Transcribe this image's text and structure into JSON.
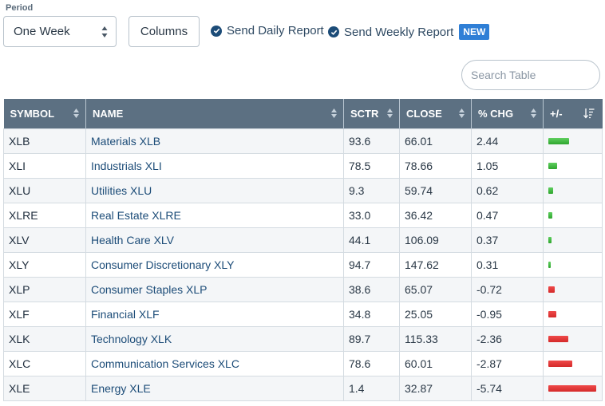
{
  "controls": {
    "period_label": "Period",
    "period_value": "One Week",
    "columns_label": "Columns",
    "daily_report_label": "Send Daily Report",
    "weekly_report_label": "Send Weekly Report",
    "new_badge": "NEW",
    "search_placeholder": "Search Table"
  },
  "colors": {
    "positive": "#2ea52e",
    "negative": "#d42a2a",
    "header": "#5c7082",
    "link": "#1c4c78"
  },
  "table": {
    "headers": [
      "SYMBOL",
      "NAME",
      "SCTR",
      "CLOSE",
      "% CHG",
      "+/-"
    ],
    "rows": [
      {
        "symbol": "XLB",
        "name": "Materials XLB",
        "sctr": "93.6",
        "close": "66.01",
        "chg": "2.44"
      },
      {
        "symbol": "XLI",
        "name": "Industrials XLI",
        "sctr": "78.5",
        "close": "78.66",
        "chg": "1.05"
      },
      {
        "symbol": "XLU",
        "name": "Utilities XLU",
        "sctr": "9.3",
        "close": "59.74",
        "chg": "0.62"
      },
      {
        "symbol": "XLRE",
        "name": "Real Estate XLRE",
        "sctr": "33.0",
        "close": "36.42",
        "chg": "0.47"
      },
      {
        "symbol": "XLV",
        "name": "Health Care XLV",
        "sctr": "44.1",
        "close": "106.09",
        "chg": "0.37"
      },
      {
        "symbol": "XLY",
        "name": "Consumer Discretionary XLY",
        "sctr": "94.7",
        "close": "147.62",
        "chg": "0.31"
      },
      {
        "symbol": "XLP",
        "name": "Consumer Staples XLP",
        "sctr": "38.6",
        "close": "65.07",
        "chg": "-0.72"
      },
      {
        "symbol": "XLF",
        "name": "Financial XLF",
        "sctr": "34.8",
        "close": "25.05",
        "chg": "-0.95"
      },
      {
        "symbol": "XLK",
        "name": "Technology XLK",
        "sctr": "89.7",
        "close": "115.33",
        "chg": "-2.36"
      },
      {
        "symbol": "XLC",
        "name": "Communication Services XLC",
        "sctr": "78.6",
        "close": "60.01",
        "chg": "-2.87"
      },
      {
        "symbol": "XLE",
        "name": "Energy XLE",
        "sctr": "1.4",
        "close": "32.87",
        "chg": "-5.74"
      }
    ]
  }
}
